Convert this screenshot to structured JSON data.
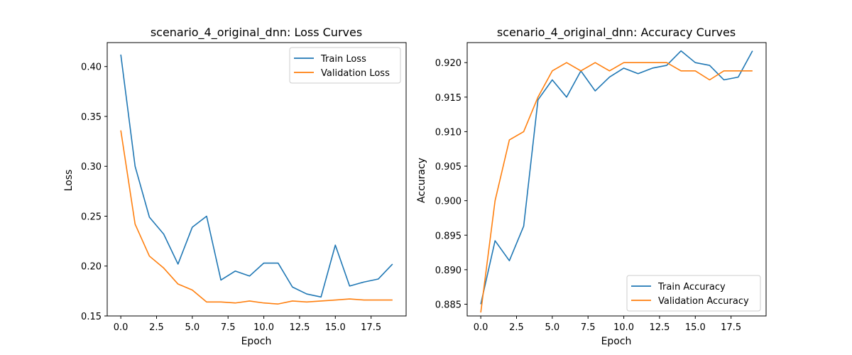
{
  "chart_data": [
    {
      "type": "line",
      "title": "scenario_4_original_dnn: Loss Curves",
      "xlabel": "Epoch",
      "ylabel": "Loss",
      "xlim": [
        -0.95,
        19.95
      ],
      "ylim": [
        0.15,
        0.424
      ],
      "xticks": [
        0,
        2.5,
        5,
        7.5,
        10,
        12.5,
        15,
        17.5
      ],
      "xtick_labels": [
        "0.0",
        "2.5",
        "5.0",
        "7.5",
        "10.0",
        "12.5",
        "15.0",
        "17.5"
      ],
      "yticks": [
        0.15,
        0.2,
        0.25,
        0.3,
        0.35,
        0.4
      ],
      "ytick_labels": [
        "0.15",
        "0.20",
        "0.25",
        "0.30",
        "0.35",
        "0.40"
      ],
      "grid": false,
      "legend": "top-right",
      "x": [
        0,
        1,
        2,
        3,
        4,
        5,
        6,
        7,
        8,
        9,
        10,
        11,
        12,
        13,
        14,
        15,
        16,
        17,
        18,
        19
      ],
      "series": [
        {
          "name": "Train Loss",
          "color": "#1f77b4",
          "values": [
            0.412,
            0.3,
            0.249,
            0.232,
            0.202,
            0.239,
            0.25,
            0.186,
            0.195,
            0.19,
            0.203,
            0.203,
            0.179,
            0.172,
            0.169,
            0.221,
            0.18,
            0.184,
            0.187,
            0.202
          ]
        },
        {
          "name": "Validation Loss",
          "color": "#ff7f0e",
          "values": [
            0.336,
            0.242,
            0.21,
            0.198,
            0.182,
            0.176,
            0.164,
            0.164,
            0.163,
            0.165,
            0.163,
            0.162,
            0.165,
            0.164,
            0.165,
            0.166,
            0.167,
            0.166,
            0.166,
            0.166
          ]
        }
      ]
    },
    {
      "type": "line",
      "title": "scenario_4_original_dnn: Accuracy Curves",
      "xlabel": "Epoch",
      "ylabel": "Accuracy",
      "xlim": [
        -0.95,
        19.95
      ],
      "ylim": [
        0.8833,
        0.9229
      ],
      "xticks": [
        0,
        2.5,
        5,
        7.5,
        10,
        12.5,
        15,
        17.5
      ],
      "xtick_labels": [
        "0.0",
        "2.5",
        "5.0",
        "7.5",
        "10.0",
        "12.5",
        "15.0",
        "17.5"
      ],
      "yticks": [
        0.885,
        0.89,
        0.895,
        0.9,
        0.905,
        0.91,
        0.915,
        0.92
      ],
      "ytick_labels": [
        "0.885",
        "0.890",
        "0.895",
        "0.900",
        "0.905",
        "0.910",
        "0.915",
        "0.920"
      ],
      "grid": false,
      "legend": "bottom-right",
      "x": [
        0,
        1,
        2,
        3,
        4,
        5,
        6,
        7,
        8,
        9,
        10,
        11,
        12,
        13,
        14,
        15,
        16,
        17,
        18,
        19
      ],
      "series": [
        {
          "name": "Train Accuracy",
          "color": "#1f77b4",
          "values": [
            0.885,
            0.8942,
            0.8913,
            0.8963,
            0.9146,
            0.9175,
            0.915,
            0.9188,
            0.9159,
            0.9179,
            0.9192,
            0.9184,
            0.9192,
            0.9196,
            0.9217,
            0.92,
            0.9196,
            0.9175,
            0.9179,
            0.9217
          ]
        },
        {
          "name": "Validation Accuracy",
          "color": "#ff7f0e",
          "values": [
            0.8838,
            0.9,
            0.9088,
            0.91,
            0.915,
            0.9188,
            0.92,
            0.9188,
            0.92,
            0.9188,
            0.92,
            0.92,
            0.92,
            0.92,
            0.9188,
            0.9188,
            0.9175,
            0.9188,
            0.9188,
            0.9188
          ]
        }
      ]
    }
  ]
}
